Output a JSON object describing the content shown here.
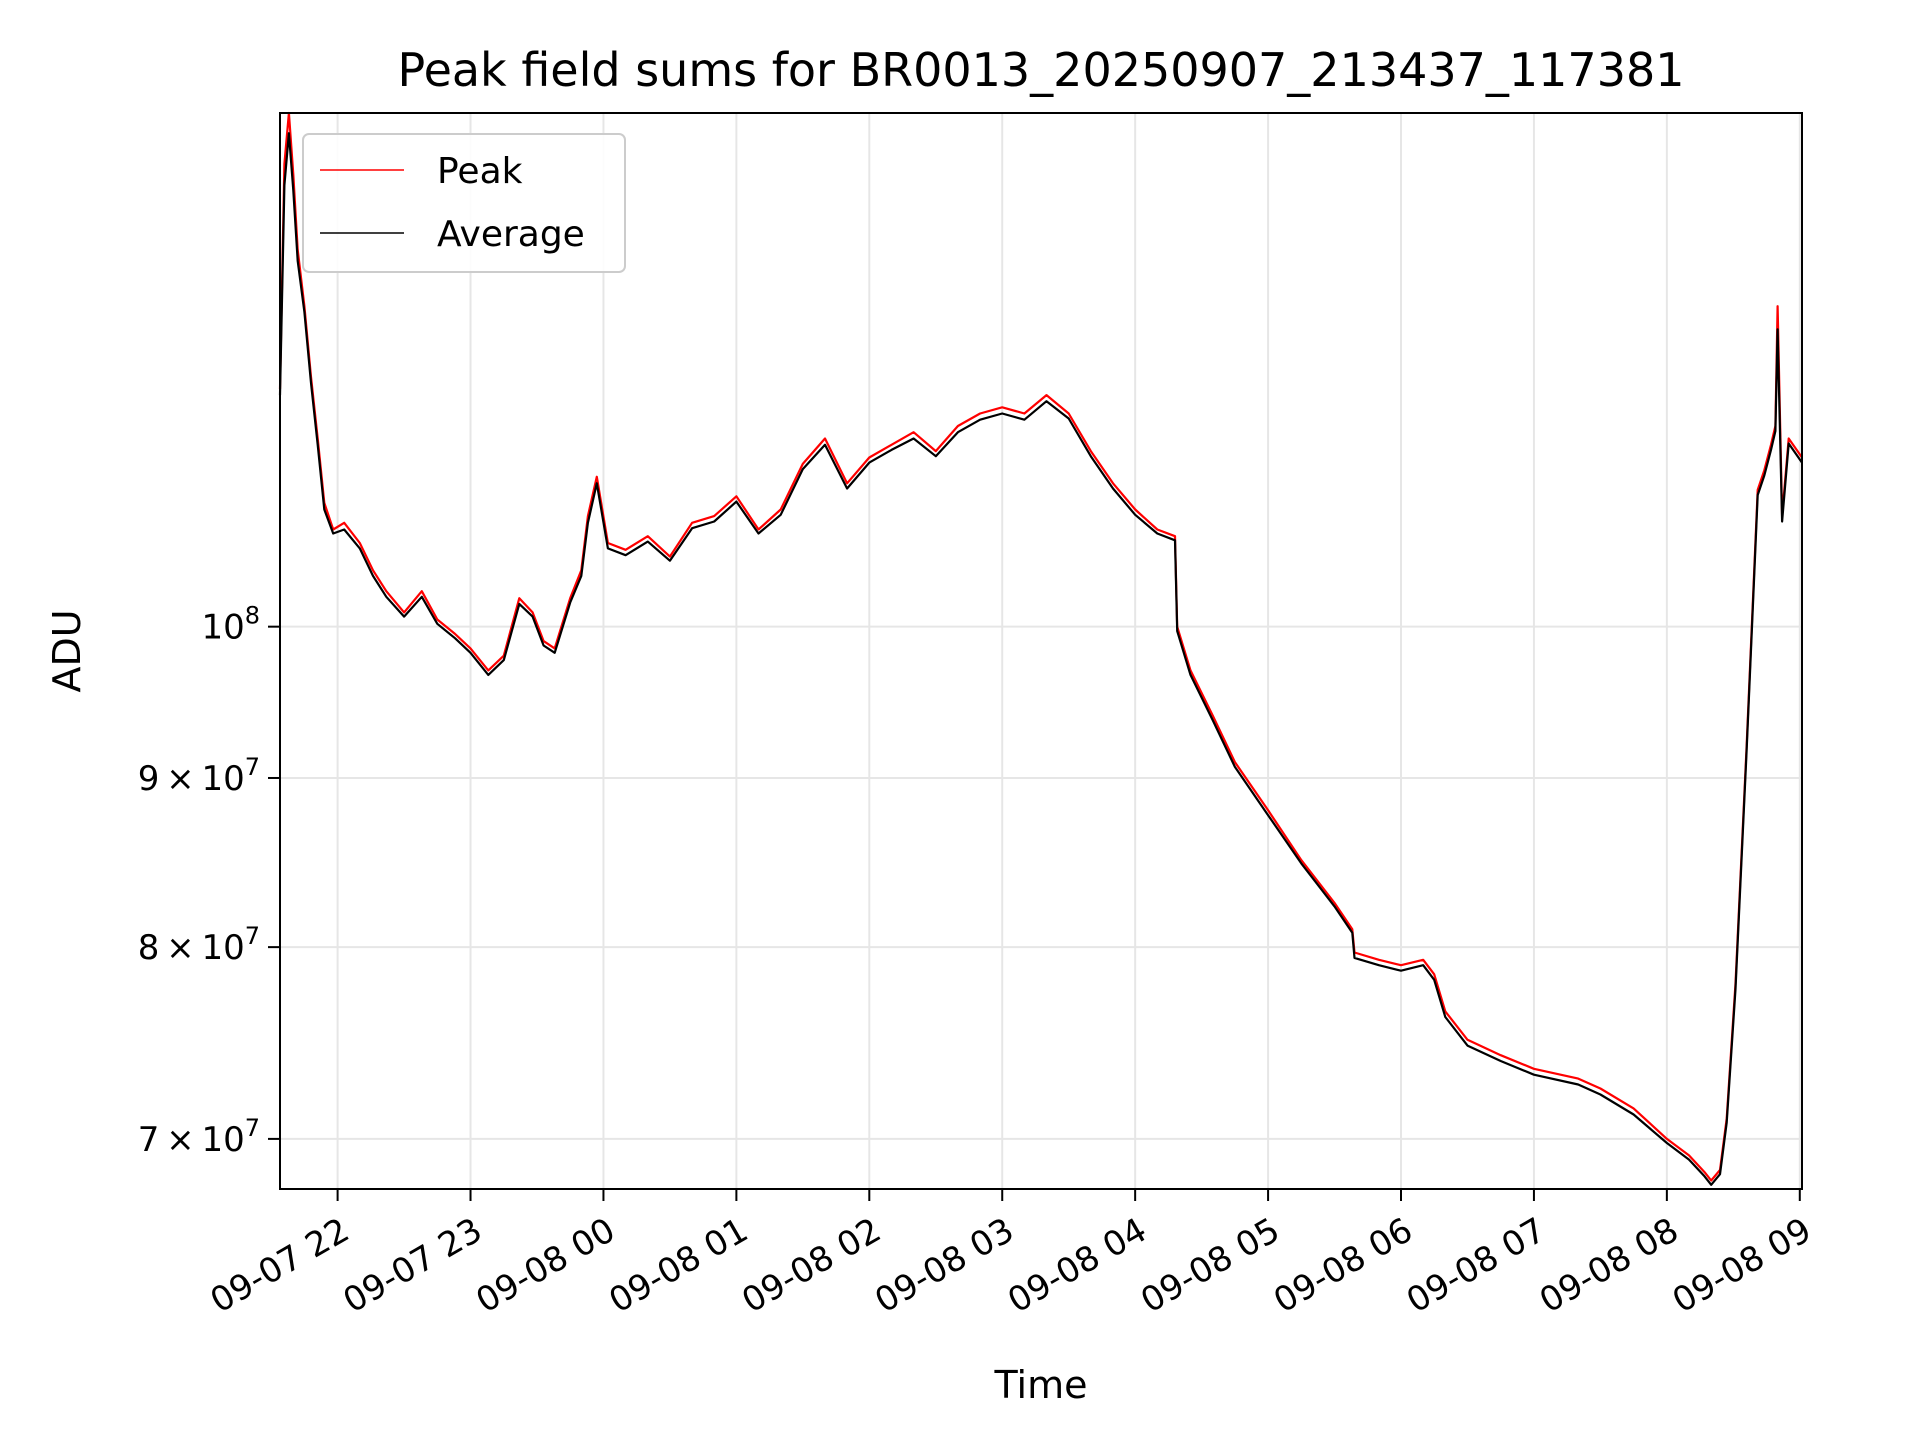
{
  "chart_data": {
    "type": "line",
    "title": "Peak field sums for BR0013_20250907_213437_117381",
    "xlabel": "Time",
    "ylabel": "ADU",
    "yscale": "log",
    "grid": true,
    "legend_position": "top-left",
    "xlim": [
      "2025-09-07 21:34",
      "2025-09-08 09:01"
    ],
    "ylim": [
      67600000,
      143000000
    ],
    "x_ticks": [
      "09-07 22",
      "09-07 23",
      "09-08 00",
      "09-08 01",
      "09-08 02",
      "09-08 03",
      "09-08 04",
      "09-08 05",
      "09-08 06",
      "09-08 07",
      "09-08 08",
      "09-08 09"
    ],
    "x_tick_times": [
      "2025-09-07 22:00",
      "2025-09-07 23:00",
      "2025-09-08 00:00",
      "2025-09-08 01:00",
      "2025-09-08 02:00",
      "2025-09-08 03:00",
      "2025-09-08 04:00",
      "2025-09-08 05:00",
      "2025-09-08 06:00",
      "2025-09-08 07:00",
      "2025-09-08 08:00",
      "2025-09-08 09:00"
    ],
    "y_ticks": [
      {
        "value": 70000000,
        "mantissa": "7",
        "exponent": "7"
      },
      {
        "value": 80000000,
        "mantissa": "8",
        "exponent": "7"
      },
      {
        "value": 90000000,
        "mantissa": "9",
        "exponent": "7"
      },
      {
        "value": 100000000,
        "mantissa": "",
        "exponent": "8"
      }
    ],
    "tick_base": "10",
    "times_symbol": "×",
    "series": [
      {
        "name": "Peak",
        "color": "#ff0000",
        "x": [
          "2025-09-07 21:34",
          "2025-09-07 21:36",
          "2025-09-07 21:38",
          "2025-09-07 21:40",
          "2025-09-07 21:42",
          "2025-09-07 21:45",
          "2025-09-07 21:48",
          "2025-09-07 21:51",
          "2025-09-07 21:54",
          "2025-09-07 21:58",
          "2025-09-07 22:03",
          "2025-09-07 22:10",
          "2025-09-07 22:16",
          "2025-09-07 22:22",
          "2025-09-07 22:30",
          "2025-09-07 22:38",
          "2025-09-07 22:45",
          "2025-09-07 22:53",
          "2025-09-07 23:00",
          "2025-09-07 23:08",
          "2025-09-07 23:15",
          "2025-09-07 23:22",
          "2025-09-07 23:28",
          "2025-09-07 23:33",
          "2025-09-07 23:38",
          "2025-09-07 23:45",
          "2025-09-07 23:50",
          "2025-09-07 23:53",
          "2025-09-07 23:57",
          "2025-09-08 00:02",
          "2025-09-08 00:10",
          "2025-09-08 00:20",
          "2025-09-08 00:30",
          "2025-09-08 00:40",
          "2025-09-08 00:50",
          "2025-09-08 01:00",
          "2025-09-08 01:10",
          "2025-09-08 01:20",
          "2025-09-08 01:30",
          "2025-09-08 01:40",
          "2025-09-08 01:50",
          "2025-09-08 02:00",
          "2025-09-08 02:10",
          "2025-09-08 02:20",
          "2025-09-08 02:30",
          "2025-09-08 02:40",
          "2025-09-08 02:50",
          "2025-09-08 03:00",
          "2025-09-08 03:10",
          "2025-09-08 03:20",
          "2025-09-08 03:30",
          "2025-09-08 03:40",
          "2025-09-08 03:50",
          "2025-09-08 04:00",
          "2025-09-08 04:10",
          "2025-09-08 04:18",
          "2025-09-08 04:19",
          "2025-09-08 04:25",
          "2025-09-08 04:35",
          "2025-09-08 04:45",
          "2025-09-08 05:00",
          "2025-09-08 05:15",
          "2025-09-08 05:30",
          "2025-09-08 05:38",
          "2025-09-08 05:39",
          "2025-09-08 05:50",
          "2025-09-08 06:00",
          "2025-09-08 06:10",
          "2025-09-08 06:15",
          "2025-09-08 06:20",
          "2025-09-08 06:30",
          "2025-09-08 06:45",
          "2025-09-08 07:00",
          "2025-09-08 07:20",
          "2025-09-08 07:30",
          "2025-09-08 07:45",
          "2025-09-08 08:00",
          "2025-09-08 08:10",
          "2025-09-08 08:17",
          "2025-09-08 08:20",
          "2025-09-08 08:24",
          "2025-09-08 08:27",
          "2025-09-08 08:31",
          "2025-09-08 08:36",
          "2025-09-08 08:41",
          "2025-09-08 08:44",
          "2025-09-08 08:47",
          "2025-09-08 08:49",
          "2025-09-08 08:50",
          "2025-09-08 08:52",
          "2025-09-08 08:55",
          "2025-09-08 09:01"
        ],
        "y": [
          118000000,
          138000000,
          143000000,
          137000000,
          130000000,
          125000000,
          119000000,
          114000000,
          109000000,
          107000000,
          107500000,
          106000000,
          104000000,
          102500000,
          101000000,
          102500000,
          100500000,
          99500000,
          98500000,
          97000000,
          98000000,
          102000000,
          101000000,
          99000000,
          98500000,
          102000000,
          104000000,
          108000000,
          111000000,
          106000000,
          105500000,
          106500000,
          105000000,
          107500000,
          108000000,
          109500000,
          107000000,
          108500000,
          112000000,
          114000000,
          110500000,
          112500000,
          113500000,
          114500000,
          113000000,
          115000000,
          116000000,
          116500000,
          116000000,
          117500000,
          116000000,
          113000000,
          110500000,
          108500000,
          107000000,
          106500000,
          100000000,
          97000000,
          94000000,
          91000000,
          88000000,
          85000000,
          82500000,
          81000000,
          79700000,
          79300000,
          79000000,
          79300000,
          78500000,
          76500000,
          75000000,
          74200000,
          73500000,
          73000000,
          72500000,
          71500000,
          70000000,
          69200000,
          68400000,
          68000000,
          68500000,
          71000000,
          78000000,
          92000000,
          110000000,
          111500000,
          113500000,
          115000000,
          125000000,
          108000000,
          114000000,
          112500000
        ]
      },
      {
        "name": "Average",
        "color": "#000000",
        "x": [
          "2025-09-07 21:34",
          "2025-09-07 21:36",
          "2025-09-07 21:38",
          "2025-09-07 21:40",
          "2025-09-07 21:42",
          "2025-09-07 21:45",
          "2025-09-07 21:48",
          "2025-09-07 21:51",
          "2025-09-07 21:54",
          "2025-09-07 21:58",
          "2025-09-07 22:03",
          "2025-09-07 22:10",
          "2025-09-07 22:16",
          "2025-09-07 22:22",
          "2025-09-07 22:30",
          "2025-09-07 22:38",
          "2025-09-07 22:45",
          "2025-09-07 22:53",
          "2025-09-07 23:00",
          "2025-09-07 23:08",
          "2025-09-07 23:15",
          "2025-09-07 23:22",
          "2025-09-07 23:28",
          "2025-09-07 23:33",
          "2025-09-07 23:38",
          "2025-09-07 23:45",
          "2025-09-07 23:50",
          "2025-09-07 23:53",
          "2025-09-07 23:57",
          "2025-09-08 00:02",
          "2025-09-08 00:10",
          "2025-09-08 00:20",
          "2025-09-08 00:30",
          "2025-09-08 00:40",
          "2025-09-08 00:50",
          "2025-09-08 01:00",
          "2025-09-08 01:10",
          "2025-09-08 01:20",
          "2025-09-08 01:30",
          "2025-09-08 01:40",
          "2025-09-08 01:50",
          "2025-09-08 02:00",
          "2025-09-08 02:10",
          "2025-09-08 02:20",
          "2025-09-08 02:30",
          "2025-09-08 02:40",
          "2025-09-08 02:50",
          "2025-09-08 03:00",
          "2025-09-08 03:10",
          "2025-09-08 03:20",
          "2025-09-08 03:30",
          "2025-09-08 03:40",
          "2025-09-08 03:50",
          "2025-09-08 04:00",
          "2025-09-08 04:10",
          "2025-09-08 04:18",
          "2025-09-08 04:19",
          "2025-09-08 04:25",
          "2025-09-08 04:35",
          "2025-09-08 04:45",
          "2025-09-08 05:00",
          "2025-09-08 05:15",
          "2025-09-08 05:30",
          "2025-09-08 05:38",
          "2025-09-08 05:39",
          "2025-09-08 05:50",
          "2025-09-08 06:00",
          "2025-09-08 06:10",
          "2025-09-08 06:15",
          "2025-09-08 06:20",
          "2025-09-08 06:30",
          "2025-09-08 06:45",
          "2025-09-08 07:00",
          "2025-09-08 07:20",
          "2025-09-08 07:30",
          "2025-09-08 07:45",
          "2025-09-08 08:00",
          "2025-09-08 08:10",
          "2025-09-08 08:17",
          "2025-09-08 08:20",
          "2025-09-08 08:24",
          "2025-09-08 08:27",
          "2025-09-08 08:31",
          "2025-09-08 08:36",
          "2025-09-08 08:41",
          "2025-09-08 08:44",
          "2025-09-08 08:47",
          "2025-09-08 08:49",
          "2025-09-08 08:50",
          "2025-09-08 08:52",
          "2025-09-08 08:55",
          "2025-09-08 09:01"
        ],
        "y": [
          117500000,
          136000000,
          141000000,
          135500000,
          129000000,
          124500000,
          118500000,
          113500000,
          108500000,
          106700000,
          107000000,
          105600000,
          103600000,
          102100000,
          100700000,
          102100000,
          100200000,
          99200000,
          98200000,
          96700000,
          97700000,
          101600000,
          100700000,
          98700000,
          98200000,
          101700000,
          103600000,
          107500000,
          110500000,
          105600000,
          105100000,
          106100000,
          104700000,
          107100000,
          107600000,
          109100000,
          106700000,
          108100000,
          111600000,
          113500000,
          110100000,
          112100000,
          113100000,
          114000000,
          112600000,
          114500000,
          115500000,
          116000000,
          115500000,
          117000000,
          115600000,
          112600000,
          110100000,
          108100000,
          106700000,
          106200000,
          99700000,
          96700000,
          93700000,
          90700000,
          87700000,
          84800000,
          82300000,
          80800000,
          79400000,
          79000000,
          78700000,
          79000000,
          78200000,
          76200000,
          74700000,
          73900000,
          73200000,
          72700000,
          72200000,
          71200000,
          69800000,
          69000000,
          68200000,
          67800000,
          68300000,
          70800000,
          77700000,
          91700000,
          109600000,
          111100000,
          113100000,
          114600000,
          123000000,
          107600000,
          113600000,
          112100000
        ]
      }
    ]
  }
}
